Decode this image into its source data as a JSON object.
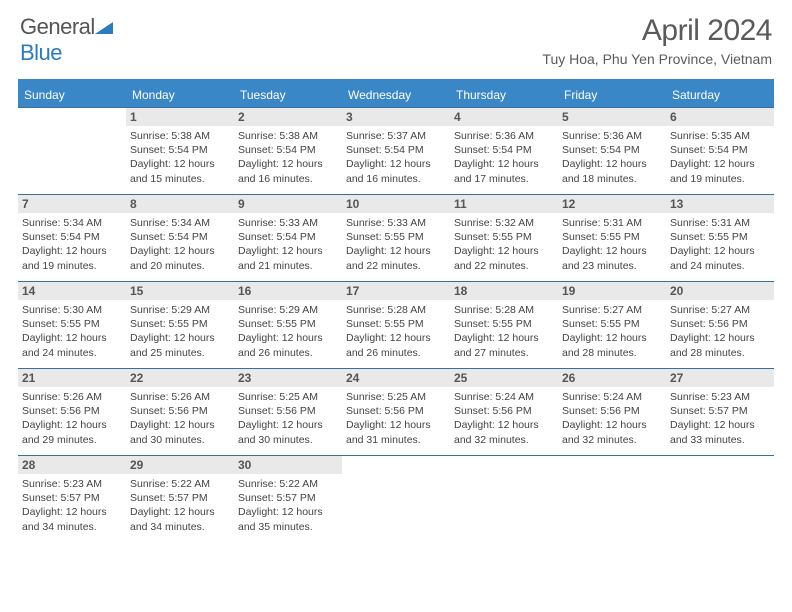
{
  "logo": {
    "word1": "General",
    "word2": "Blue"
  },
  "title": "April 2024",
  "location": "Tuy Hoa, Phu Yen Province, Vietnam",
  "colors": {
    "header_bar": "#3a87c8",
    "rule": "#3a6f9a",
    "daynum_bg": "#e9e9e9",
    "text": "#444444",
    "title_text": "#5a5a5a"
  },
  "dow": [
    "Sunday",
    "Monday",
    "Tuesday",
    "Wednesday",
    "Thursday",
    "Friday",
    "Saturday"
  ],
  "weeks": [
    [
      {
        "n": "",
        "sr": "",
        "ss": "",
        "dl": ""
      },
      {
        "n": "1",
        "sr": "Sunrise: 5:38 AM",
        "ss": "Sunset: 5:54 PM",
        "dl": "Daylight: 12 hours and 15 minutes."
      },
      {
        "n": "2",
        "sr": "Sunrise: 5:38 AM",
        "ss": "Sunset: 5:54 PM",
        "dl": "Daylight: 12 hours and 16 minutes."
      },
      {
        "n": "3",
        "sr": "Sunrise: 5:37 AM",
        "ss": "Sunset: 5:54 PM",
        "dl": "Daylight: 12 hours and 16 minutes."
      },
      {
        "n": "4",
        "sr": "Sunrise: 5:36 AM",
        "ss": "Sunset: 5:54 PM",
        "dl": "Daylight: 12 hours and 17 minutes."
      },
      {
        "n": "5",
        "sr": "Sunrise: 5:36 AM",
        "ss": "Sunset: 5:54 PM",
        "dl": "Daylight: 12 hours and 18 minutes."
      },
      {
        "n": "6",
        "sr": "Sunrise: 5:35 AM",
        "ss": "Sunset: 5:54 PM",
        "dl": "Daylight: 12 hours and 19 minutes."
      }
    ],
    [
      {
        "n": "7",
        "sr": "Sunrise: 5:34 AM",
        "ss": "Sunset: 5:54 PM",
        "dl": "Daylight: 12 hours and 19 minutes."
      },
      {
        "n": "8",
        "sr": "Sunrise: 5:34 AM",
        "ss": "Sunset: 5:54 PM",
        "dl": "Daylight: 12 hours and 20 minutes."
      },
      {
        "n": "9",
        "sr": "Sunrise: 5:33 AM",
        "ss": "Sunset: 5:54 PM",
        "dl": "Daylight: 12 hours and 21 minutes."
      },
      {
        "n": "10",
        "sr": "Sunrise: 5:33 AM",
        "ss": "Sunset: 5:55 PM",
        "dl": "Daylight: 12 hours and 22 minutes."
      },
      {
        "n": "11",
        "sr": "Sunrise: 5:32 AM",
        "ss": "Sunset: 5:55 PM",
        "dl": "Daylight: 12 hours and 22 minutes."
      },
      {
        "n": "12",
        "sr": "Sunrise: 5:31 AM",
        "ss": "Sunset: 5:55 PM",
        "dl": "Daylight: 12 hours and 23 minutes."
      },
      {
        "n": "13",
        "sr": "Sunrise: 5:31 AM",
        "ss": "Sunset: 5:55 PM",
        "dl": "Daylight: 12 hours and 24 minutes."
      }
    ],
    [
      {
        "n": "14",
        "sr": "Sunrise: 5:30 AM",
        "ss": "Sunset: 5:55 PM",
        "dl": "Daylight: 12 hours and 24 minutes."
      },
      {
        "n": "15",
        "sr": "Sunrise: 5:29 AM",
        "ss": "Sunset: 5:55 PM",
        "dl": "Daylight: 12 hours and 25 minutes."
      },
      {
        "n": "16",
        "sr": "Sunrise: 5:29 AM",
        "ss": "Sunset: 5:55 PM",
        "dl": "Daylight: 12 hours and 26 minutes."
      },
      {
        "n": "17",
        "sr": "Sunrise: 5:28 AM",
        "ss": "Sunset: 5:55 PM",
        "dl": "Daylight: 12 hours and 26 minutes."
      },
      {
        "n": "18",
        "sr": "Sunrise: 5:28 AM",
        "ss": "Sunset: 5:55 PM",
        "dl": "Daylight: 12 hours and 27 minutes."
      },
      {
        "n": "19",
        "sr": "Sunrise: 5:27 AM",
        "ss": "Sunset: 5:55 PM",
        "dl": "Daylight: 12 hours and 28 minutes."
      },
      {
        "n": "20",
        "sr": "Sunrise: 5:27 AM",
        "ss": "Sunset: 5:56 PM",
        "dl": "Daylight: 12 hours and 28 minutes."
      }
    ],
    [
      {
        "n": "21",
        "sr": "Sunrise: 5:26 AM",
        "ss": "Sunset: 5:56 PM",
        "dl": "Daylight: 12 hours and 29 minutes."
      },
      {
        "n": "22",
        "sr": "Sunrise: 5:26 AM",
        "ss": "Sunset: 5:56 PM",
        "dl": "Daylight: 12 hours and 30 minutes."
      },
      {
        "n": "23",
        "sr": "Sunrise: 5:25 AM",
        "ss": "Sunset: 5:56 PM",
        "dl": "Daylight: 12 hours and 30 minutes."
      },
      {
        "n": "24",
        "sr": "Sunrise: 5:25 AM",
        "ss": "Sunset: 5:56 PM",
        "dl": "Daylight: 12 hours and 31 minutes."
      },
      {
        "n": "25",
        "sr": "Sunrise: 5:24 AM",
        "ss": "Sunset: 5:56 PM",
        "dl": "Daylight: 12 hours and 32 minutes."
      },
      {
        "n": "26",
        "sr": "Sunrise: 5:24 AM",
        "ss": "Sunset: 5:56 PM",
        "dl": "Daylight: 12 hours and 32 minutes."
      },
      {
        "n": "27",
        "sr": "Sunrise: 5:23 AM",
        "ss": "Sunset: 5:57 PM",
        "dl": "Daylight: 12 hours and 33 minutes."
      }
    ],
    [
      {
        "n": "28",
        "sr": "Sunrise: 5:23 AM",
        "ss": "Sunset: 5:57 PM",
        "dl": "Daylight: 12 hours and 34 minutes."
      },
      {
        "n": "29",
        "sr": "Sunrise: 5:22 AM",
        "ss": "Sunset: 5:57 PM",
        "dl": "Daylight: 12 hours and 34 minutes."
      },
      {
        "n": "30",
        "sr": "Sunrise: 5:22 AM",
        "ss": "Sunset: 5:57 PM",
        "dl": "Daylight: 12 hours and 35 minutes."
      },
      {
        "n": "",
        "sr": "",
        "ss": "",
        "dl": ""
      },
      {
        "n": "",
        "sr": "",
        "ss": "",
        "dl": ""
      },
      {
        "n": "",
        "sr": "",
        "ss": "",
        "dl": ""
      },
      {
        "n": "",
        "sr": "",
        "ss": "",
        "dl": ""
      }
    ]
  ]
}
